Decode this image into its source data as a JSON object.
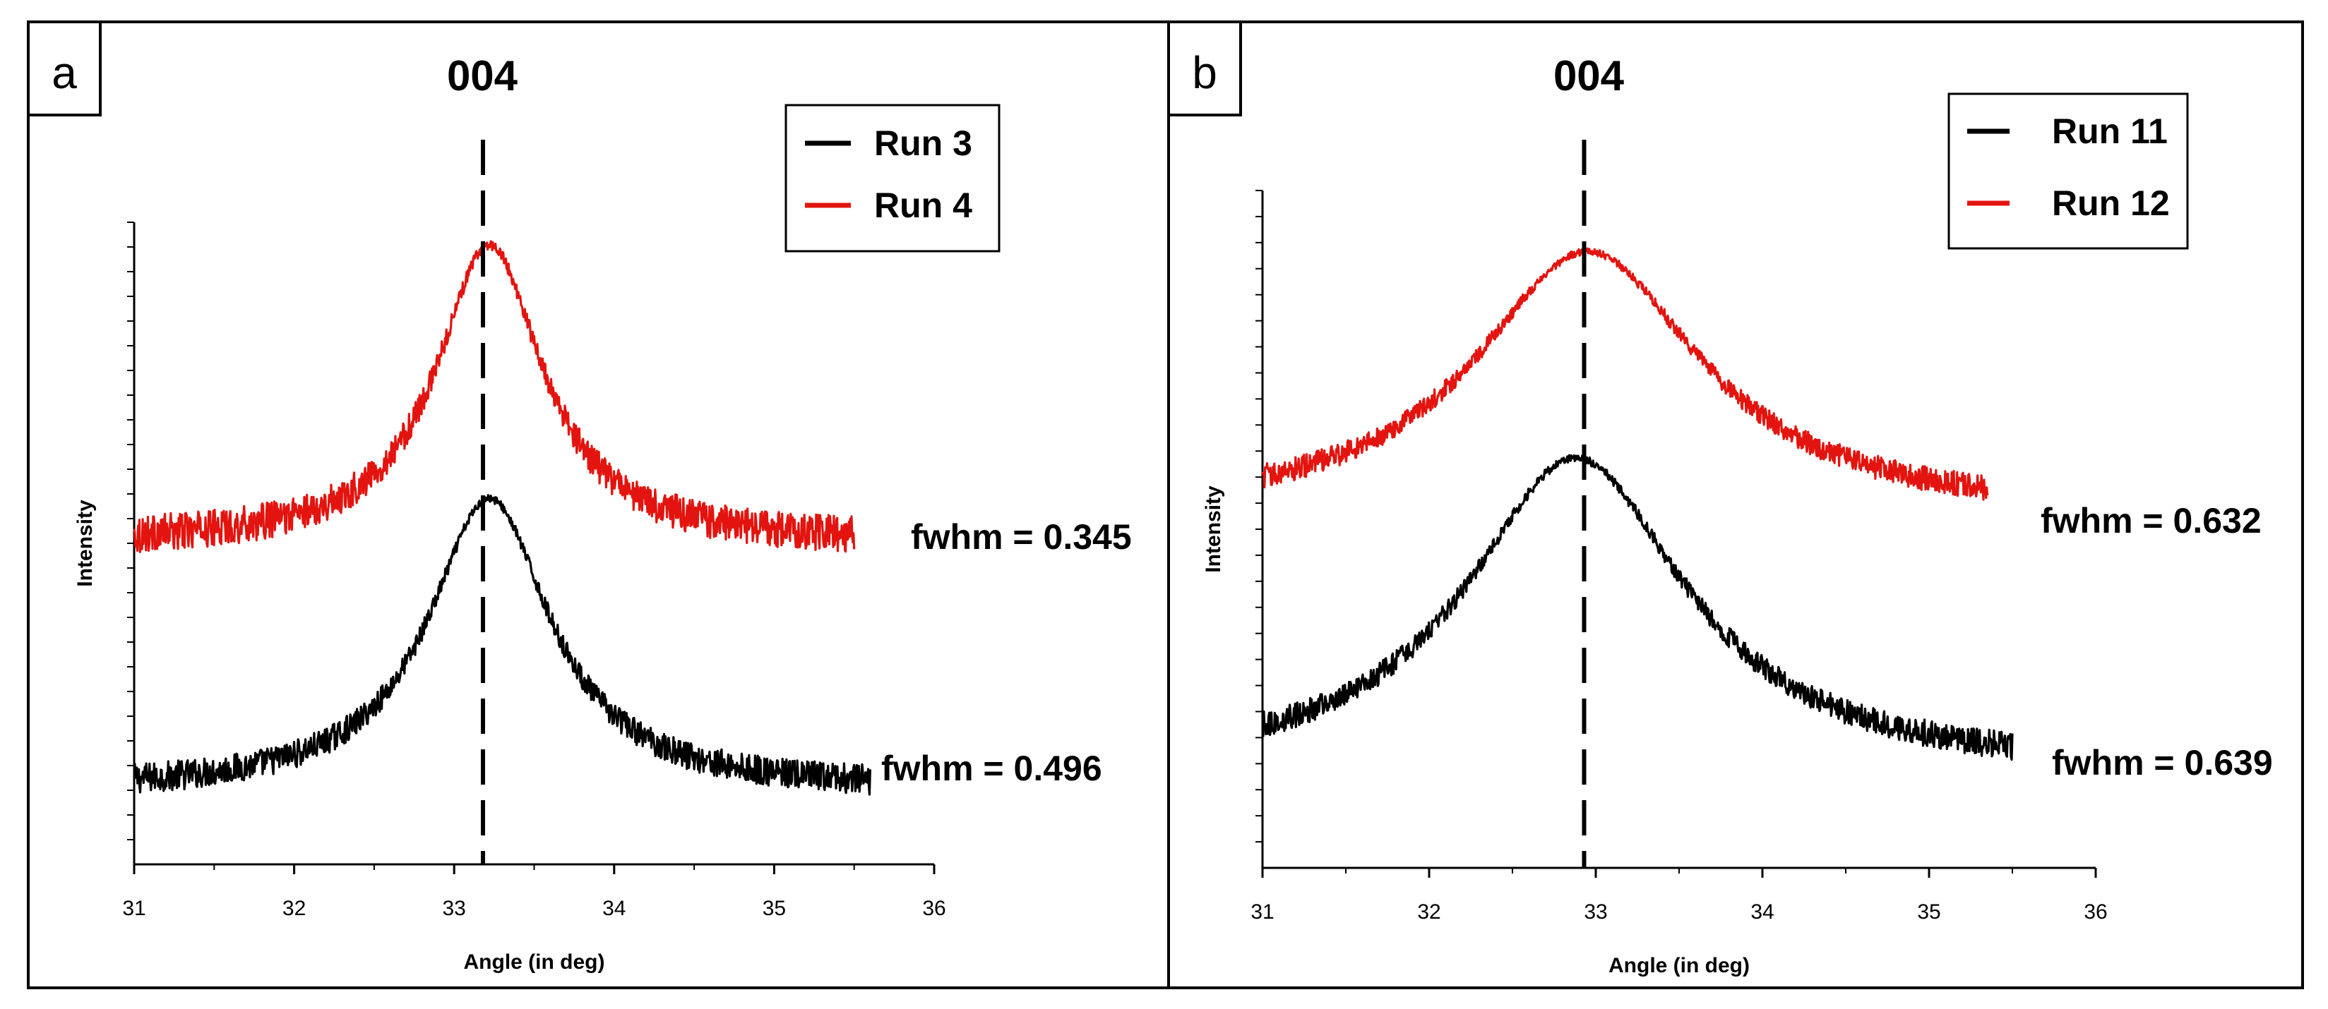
{
  "chart_data": [
    {
      "type": "line",
      "panel": "a",
      "peak_label": "004",
      "reference_line_x": 33.18,
      "xlim": [
        31,
        36
      ],
      "xticks": [
        31,
        32,
        33,
        34,
        35,
        36
      ],
      "xlabel": "Angle (in deg)",
      "ylabel": "Intensity",
      "ylim": [
        0,
        1
      ],
      "y_minor_ticks": 26,
      "legend_position": "top-right",
      "series": [
        {
          "name": "Run 3",
          "color": "#000000",
          "x_range": [
            31,
            35.6
          ],
          "center": 33.22,
          "width": 0.46,
          "baseline": 0.115,
          "amplitude": 0.455,
          "noise": 0.018,
          "fwhm_label": "fwhm = 0.496"
        },
        {
          "name": "Run 4",
          "color": "#e3140f",
          "x_range": [
            31,
            35.5
          ],
          "center": 33.22,
          "width": 0.4,
          "baseline": 0.5,
          "amplitude": 0.465,
          "noise": 0.022,
          "fwhm_label": "fwhm = 0.345"
        }
      ]
    },
    {
      "type": "line",
      "panel": "b",
      "peak_label": "004",
      "reference_line_x": 32.93,
      "xlim": [
        31,
        36
      ],
      "xticks": [
        31,
        32,
        33,
        34,
        35,
        36
      ],
      "xlabel": "Angle (in deg)",
      "ylabel": "Intensity",
      "ylim": [
        0,
        1
      ],
      "y_minor_ticks": 26,
      "legend_position": "top-right",
      "series": [
        {
          "name": "Run 11",
          "color": "#000000",
          "x_range": [
            31,
            35.5
          ],
          "center": 32.88,
          "width": 0.8,
          "baseline": 0.14,
          "amplitude": 0.465,
          "noise": 0.016,
          "fwhm_label": "fwhm = 0.639"
        },
        {
          "name": "Run 12",
          "color": "#e3140f",
          "x_range": [
            31,
            35.35
          ],
          "center": 32.95,
          "width": 0.82,
          "baseline": 0.52,
          "amplitude": 0.39,
          "noise": 0.015,
          "fwhm_label": "fwhm = 0.632"
        }
      ]
    }
  ]
}
